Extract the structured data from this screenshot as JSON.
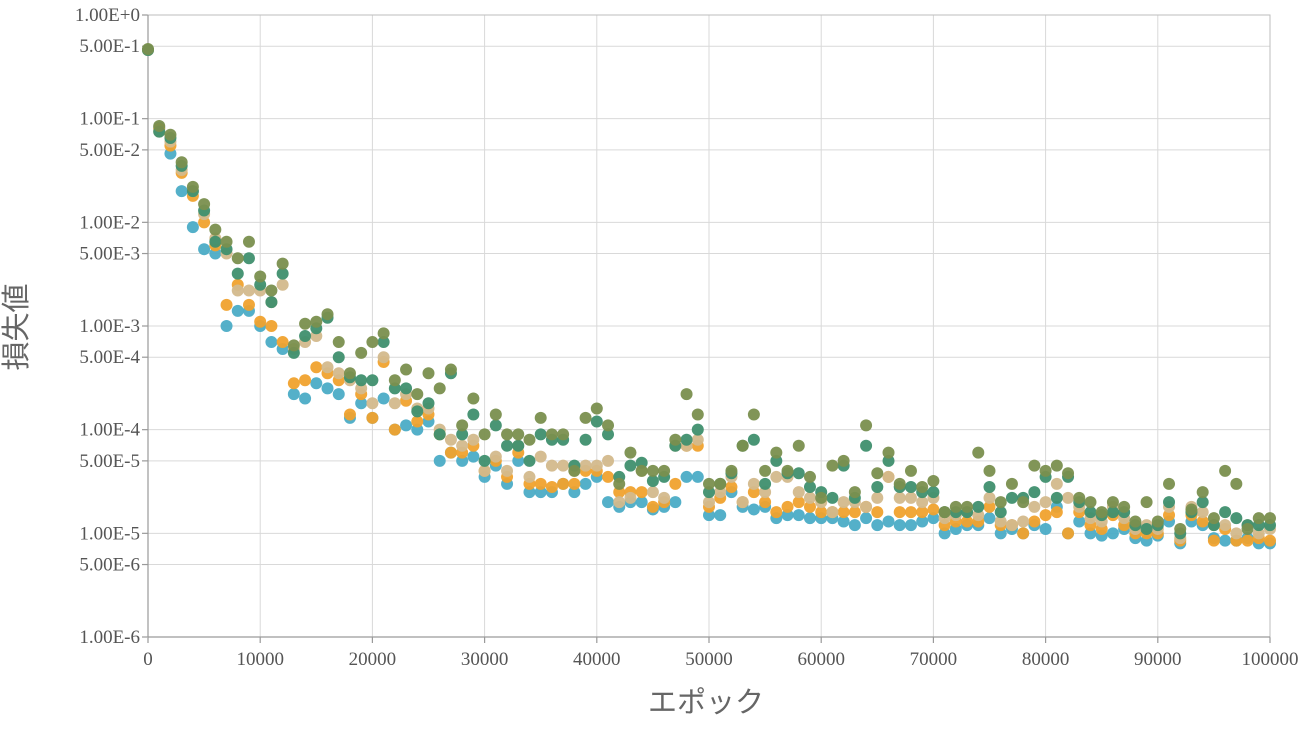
{
  "chart_data": {
    "type": "scatter",
    "title": "",
    "xlabel": "エポック",
    "ylabel": "損失値",
    "x_scale": "linear",
    "y_scale": "log",
    "xlim": [
      0,
      100000
    ],
    "ylim": [
      1e-06,
      1
    ],
    "x_ticks": [
      "0",
      "10000",
      "20000",
      "30000",
      "40000",
      "50000",
      "60000",
      "70000",
      "80000",
      "90000",
      "100000"
    ],
    "y_ticks": [
      {
        "value": 1,
        "label": "1.00E+0"
      },
      {
        "value": 0.5,
        "label": "5.00E-1"
      },
      {
        "value": 0.1,
        "label": "1.00E-1"
      },
      {
        "value": 0.05,
        "label": "5.00E-2"
      },
      {
        "value": 0.01,
        "label": "1.00E-2"
      },
      {
        "value": 0.005,
        "label": "5.00E-3"
      },
      {
        "value": 0.001,
        "label": "1.00E-3"
      },
      {
        "value": 0.0005,
        "label": "5.00E-4"
      },
      {
        "value": 0.0001,
        "label": "1.00E-4"
      },
      {
        "value": 5e-05,
        "label": "5.00E-5"
      },
      {
        "value": 1e-05,
        "label": "1.00E-5"
      },
      {
        "value": 5e-06,
        "label": "5.00E-6"
      },
      {
        "value": 1e-06,
        "label": "1.00E-6"
      }
    ],
    "grid": true,
    "legend": "none",
    "x": [
      0,
      1000,
      2000,
      3000,
      4000,
      5000,
      6000,
      7000,
      8000,
      9000,
      10000,
      11000,
      12000,
      13000,
      14000,
      15000,
      16000,
      17000,
      18000,
      19000,
      20000,
      21000,
      22000,
      23000,
      24000,
      25000,
      26000,
      27000,
      28000,
      29000,
      30000,
      31000,
      32000,
      33000,
      34000,
      35000,
      36000,
      37000,
      38000,
      39000,
      40000,
      41000,
      42000,
      43000,
      44000,
      45000,
      46000,
      47000,
      48000,
      49000,
      50000,
      51000,
      52000,
      53000,
      54000,
      55000,
      56000,
      57000,
      58000,
      59000,
      60000,
      61000,
      62000,
      63000,
      64000,
      65000,
      66000,
      67000,
      68000,
      69000,
      70000,
      71000,
      72000,
      73000,
      74000,
      75000,
      76000,
      77000,
      78000,
      79000,
      80000,
      81000,
      82000,
      83000,
      84000,
      85000,
      86000,
      87000,
      88000,
      89000,
      90000,
      91000,
      92000,
      93000,
      94000,
      95000,
      96000,
      97000,
      98000,
      99000,
      100000
    ],
    "series": [
      {
        "color": "#4bacc6",
        "values": [
          0.46,
          0.082,
          0.046,
          0.02,
          0.009,
          0.0055,
          0.005,
          0.001,
          0.0014,
          0.0014,
          0.001,
          0.0007,
          0.0006,
          0.00022,
          0.0002,
          0.00028,
          0.00025,
          0.00022,
          0.00013,
          0.00018,
          0.00013,
          0.0002,
          0.0001,
          0.00011,
          0.0001,
          0.00012,
          5e-05,
          6e-05,
          5e-05,
          5.5e-05,
          3.5e-05,
          4.5e-05,
          3e-05,
          5e-05,
          2.5e-05,
          2.5e-05,
          2.5e-05,
          3e-05,
          2.5e-05,
          3e-05,
          3.5e-05,
          2e-05,
          1.8e-05,
          2e-05,
          2e-05,
          1.7e-05,
          1.8e-05,
          2e-05,
          3.5e-05,
          3.5e-05,
          1.5e-05,
          1.5e-05,
          2.5e-05,
          1.8e-05,
          1.7e-05,
          1.8e-05,
          1.4e-05,
          1.5e-05,
          1.5e-05,
          1.4e-05,
          1.4e-05,
          1.4e-05,
          1.3e-05,
          1.2e-05,
          1.4e-05,
          1.2e-05,
          1.3e-05,
          1.2e-05,
          1.2e-05,
          1.3e-05,
          1.4e-05,
          1e-05,
          1.1e-05,
          1.2e-05,
          1.2e-05,
          1.4e-05,
          1e-05,
          1.1e-05,
          1e-05,
          1.2e-05,
          1.1e-05,
          1.8e-05,
          1e-05,
          1.3e-05,
          1e-05,
          9.5e-06,
          1e-05,
          1.1e-05,
          9e-06,
          8.5e-06,
          9.5e-06,
          1.3e-05,
          8e-06,
          1.3e-05,
          1.2e-05,
          9e-06,
          8.5e-06,
          8.5e-06,
          9e-06,
          8e-06,
          8e-06
        ]
      },
      {
        "color": "#f0a22e",
        "values": [
          0.46,
          0.08,
          0.055,
          0.03,
          0.018,
          0.01,
          0.006,
          0.0016,
          0.0025,
          0.0016,
          0.0011,
          0.001,
          0.0007,
          0.00028,
          0.0003,
          0.0004,
          0.00035,
          0.0003,
          0.00014,
          0.00022,
          0.00013,
          0.00045,
          0.0001,
          0.00019,
          0.00012,
          0.00014,
          9e-05,
          6e-05,
          6e-05,
          7e-05,
          4e-05,
          5e-05,
          3.5e-05,
          6e-05,
          3e-05,
          3e-05,
          2.8e-05,
          3e-05,
          3e-05,
          4e-05,
          4e-05,
          3.5e-05,
          2.5e-05,
          2.5e-05,
          2.5e-05,
          1.8e-05,
          2e-05,
          3e-05,
          7e-05,
          7e-05,
          1.8e-05,
          2.2e-05,
          2.8e-05,
          2e-05,
          2.5e-05,
          2e-05,
          1.6e-05,
          1.8e-05,
          2e-05,
          1.8e-05,
          1.6e-05,
          1.6e-05,
          1.6e-05,
          1.6e-05,
          1.8e-05,
          1.6e-05,
          3.5e-05,
          1.6e-05,
          1.6e-05,
          1.6e-05,
          1.7e-05,
          1.2e-05,
          1.3e-05,
          1.3e-05,
          1.3e-05,
          1.8e-05,
          1.2e-05,
          1.2e-05,
          1e-05,
          1.3e-05,
          1.5e-05,
          1.6e-05,
          1e-05,
          1.6e-05,
          1.2e-05,
          1.1e-05,
          1.5e-05,
          1.2e-05,
          1e-05,
          1e-05,
          1e-05,
          1.5e-05,
          8.5e-06,
          1.5e-05,
          1.3e-05,
          8.5e-06,
          1.1e-05,
          8.5e-06,
          8.5e-06,
          9e-06,
          8.5e-06
        ]
      },
      {
        "color": "#d3b98c",
        "values": [
          0.46,
          0.075,
          0.06,
          0.032,
          0.02,
          0.012,
          0.007,
          0.005,
          0.0022,
          0.0022,
          0.0022,
          0.0017,
          0.0025,
          0.0006,
          0.0007,
          0.0008,
          0.0004,
          0.00035,
          0.0003,
          0.00025,
          0.00018,
          0.0005,
          0.00018,
          0.00022,
          0.00016,
          0.00016,
          0.0001,
          8e-05,
          7e-05,
          8e-05,
          4e-05,
          5.5e-05,
          4e-05,
          7e-05,
          3.5e-05,
          5.5e-05,
          4.5e-05,
          4.5e-05,
          4e-05,
          4.5e-05,
          4.5e-05,
          5e-05,
          2e-05,
          2.2e-05,
          4e-05,
          2.5e-05,
          2.2e-05,
          7e-05,
          7e-05,
          8e-05,
          2e-05,
          2.5e-05,
          3.5e-05,
          2e-05,
          3e-05,
          2.5e-05,
          3.5e-05,
          3.5e-05,
          2.5e-05,
          2.2e-05,
          2e-05,
          1.6e-05,
          2e-05,
          2e-05,
          1.8e-05,
          2.2e-05,
          3.5e-05,
          2.2e-05,
          2.2e-05,
          2e-05,
          2.2e-05,
          1.4e-05,
          1.5e-05,
          1.6e-05,
          1.5e-05,
          2.2e-05,
          1.3e-05,
          1.2e-05,
          1.3e-05,
          1.8e-05,
          2e-05,
          3e-05,
          2.2e-05,
          1.8e-05,
          1.4e-05,
          1.3e-05,
          1.8e-05,
          1.4e-05,
          1.1e-05,
          1.2e-05,
          1.1e-05,
          1.8e-05,
          9e-06,
          1.8e-05,
          1.6e-05,
          1.2e-05,
          1.2e-05,
          1e-05,
          1.2e-05,
          1e-05,
          1.1e-05
        ]
      },
      {
        "color": "#3f8f6e",
        "values": [
          0.46,
          0.075,
          0.065,
          0.035,
          0.02,
          0.013,
          0.0065,
          0.0055,
          0.0032,
          0.0045,
          0.0025,
          0.0017,
          0.0032,
          0.00055,
          0.0008,
          0.00095,
          0.0012,
          0.0005,
          0.00032,
          0.0003,
          0.0003,
          0.0007,
          0.00025,
          0.00025,
          0.00015,
          0.00018,
          9e-05,
          0.00035,
          9e-05,
          0.00014,
          5e-05,
          0.00011,
          7e-05,
          7e-05,
          5e-05,
          9e-05,
          8e-05,
          8e-05,
          4.5e-05,
          8e-05,
          0.00012,
          9e-05,
          3.5e-05,
          4.5e-05,
          4.8e-05,
          3.2e-05,
          3.5e-05,
          7e-05,
          8e-05,
          0.0001,
          2.5e-05,
          3e-05,
          3.8e-05,
          7e-05,
          8e-05,
          3e-05,
          5e-05,
          3.8e-05,
          3.8e-05,
          2.8e-05,
          2.5e-05,
          2.2e-05,
          4.5e-05,
          2.2e-05,
          7e-05,
          2.8e-05,
          5e-05,
          2.8e-05,
          2.8e-05,
          2.5e-05,
          2.5e-05,
          1.6e-05,
          1.6e-05,
          1.6e-05,
          1.8e-05,
          2.8e-05,
          1.6e-05,
          2.2e-05,
          2.2e-05,
          2.5e-05,
          3.5e-05,
          2.2e-05,
          3.5e-05,
          2e-05,
          1.6e-05,
          1.5e-05,
          1.6e-05,
          1.6e-05,
          1.2e-05,
          1.1e-05,
          1.2e-05,
          2e-05,
          1e-05,
          1.6e-05,
          2e-05,
          1.2e-05,
          1.6e-05,
          1.4e-05,
          1.2e-05,
          1.2e-05,
          1.2e-05
        ]
      },
      {
        "color": "#7a8f4e",
        "values": [
          0.47,
          0.085,
          0.07,
          0.038,
          0.022,
          0.015,
          0.0085,
          0.0065,
          0.0045,
          0.0065,
          0.003,
          0.0022,
          0.004,
          0.00065,
          0.00105,
          0.0011,
          0.0013,
          0.0007,
          0.00035,
          0.00055,
          0.0007,
          0.00085,
          0.0003,
          0.00038,
          0.00022,
          0.00035,
          0.00025,
          0.00038,
          0.00011,
          0.0002,
          9e-05,
          0.00014,
          9e-05,
          9e-05,
          8e-05,
          0.00013,
          9e-05,
          9e-05,
          4e-05,
          0.00013,
          0.00016,
          0.00011,
          3e-05,
          6e-05,
          4e-05,
          4e-05,
          4e-05,
          8e-05,
          0.00022,
          0.00014,
          3e-05,
          3e-05,
          4e-05,
          7e-05,
          0.00014,
          4e-05,
          6e-05,
          4e-05,
          7e-05,
          3.5e-05,
          2.2e-05,
          4.5e-05,
          5e-05,
          2.5e-05,
          0.00011,
          3.8e-05,
          6e-05,
          3e-05,
          4e-05,
          2.8e-05,
          3.2e-05,
          1.6e-05,
          1.8e-05,
          1.8e-05,
          6e-05,
          4e-05,
          2e-05,
          3e-05,
          2e-05,
          4.5e-05,
          4e-05,
          4.5e-05,
          3.8e-05,
          2.2e-05,
          2e-05,
          1.6e-05,
          2e-05,
          1.8e-05,
          1.3e-05,
          2e-05,
          1.3e-05,
          3e-05,
          1.1e-05,
          1.7e-05,
          2.5e-05,
          1.4e-05,
          4e-05,
          3e-05,
          1.1e-05,
          1.4e-05,
          1.4e-05
        ]
      }
    ]
  }
}
